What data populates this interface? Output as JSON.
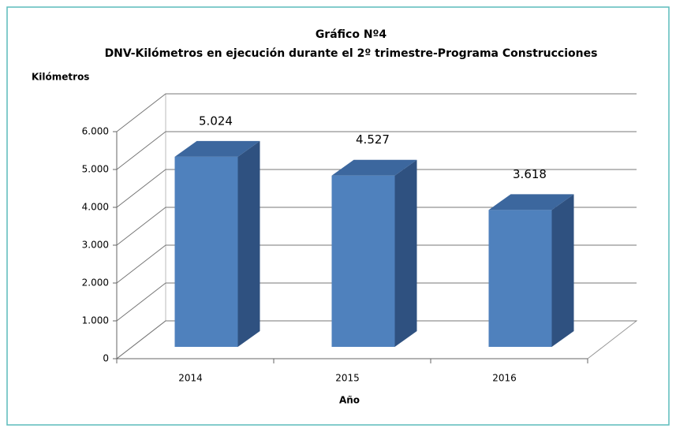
{
  "chart_data": {
    "type": "bar3d",
    "title": "Gráfico Nº4",
    "subtitle": "DNV-Kilómetros en ejecución durante el 2º trimestre-Programa Construcciones",
    "y_label": "Kilómetros",
    "x_label": "Año",
    "categories": [
      "2014",
      "2015",
      "2016"
    ],
    "values": [
      5024,
      4527,
      3618
    ],
    "value_labels": [
      "5.024",
      "4.527",
      "3.618"
    ],
    "color": "#4f81bd",
    "ylim": [
      0,
      6000
    ],
    "yticks": [
      0,
      {
        "value": 1000,
        "label": "1.000"
      },
      {
        "value": 2000,
        "label": "2.000"
      },
      {
        "value": 3000,
        "label": "3.000"
      },
      {
        "value": 4000,
        "label": "4.000"
      },
      {
        "value": 5000,
        "label": "5.000"
      },
      {
        "value": 6000,
        "label": "6.000"
      }
    ],
    "grid": true
  }
}
